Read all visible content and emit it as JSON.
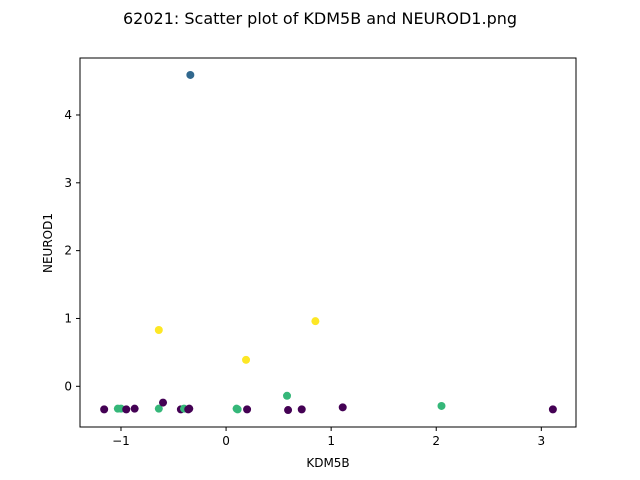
{
  "chart_data": {
    "type": "scatter",
    "title": "62021: Scatter plot of KDM5B and NEUROD1.png",
    "xlabel": "KDM5B",
    "ylabel": "NEUROD1",
    "xlim": [
      -1.39,
      3.33
    ],
    "ylim": [
      -0.6,
      4.84
    ],
    "x_ticks": [
      -1,
      0,
      1,
      2,
      3
    ],
    "y_ticks": [
      0,
      1,
      2,
      3,
      4
    ],
    "grid": false,
    "colors": {
      "dark_purple": "#440154",
      "blue": "#31688e",
      "green": "#35b779",
      "yellow": "#fde725"
    },
    "points": [
      {
        "x": -0.34,
        "y": 4.59,
        "color": "#31688e"
      },
      {
        "x": -0.64,
        "y": 0.83,
        "color": "#fde725"
      },
      {
        "x": 0.85,
        "y": 0.96,
        "color": "#fde725"
      },
      {
        "x": 0.19,
        "y": 0.39,
        "color": "#fde725"
      },
      {
        "x": -1.16,
        "y": -0.34,
        "color": "#440154"
      },
      {
        "x": -1.03,
        "y": -0.33,
        "color": "#35b779"
      },
      {
        "x": -1.0,
        "y": -0.33,
        "color": "#35b779"
      },
      {
        "x": -0.95,
        "y": -0.34,
        "color": "#440154"
      },
      {
        "x": -0.87,
        "y": -0.33,
        "color": "#440154"
      },
      {
        "x": -0.64,
        "y": -0.33,
        "color": "#35b779"
      },
      {
        "x": -0.6,
        "y": -0.24,
        "color": "#440154"
      },
      {
        "x": -0.43,
        "y": -0.34,
        "color": "#440154"
      },
      {
        "x": -0.4,
        "y": -0.33,
        "color": "#35b779"
      },
      {
        "x": -0.36,
        "y": -0.34,
        "color": "#440154"
      },
      {
        "x": -0.35,
        "y": -0.33,
        "color": "#440154"
      },
      {
        "x": 0.1,
        "y": -0.33,
        "color": "#35b779"
      },
      {
        "x": 0.11,
        "y": -0.34,
        "color": "#35b779"
      },
      {
        "x": 0.2,
        "y": -0.34,
        "color": "#440154"
      },
      {
        "x": 0.58,
        "y": -0.14,
        "color": "#35b779"
      },
      {
        "x": 0.59,
        "y": -0.35,
        "color": "#440154"
      },
      {
        "x": 0.72,
        "y": -0.34,
        "color": "#440154"
      },
      {
        "x": 1.11,
        "y": -0.31,
        "color": "#440154"
      },
      {
        "x": 2.05,
        "y": -0.29,
        "color": "#35b779"
      },
      {
        "x": 3.11,
        "y": -0.34,
        "color": "#440154"
      }
    ]
  }
}
